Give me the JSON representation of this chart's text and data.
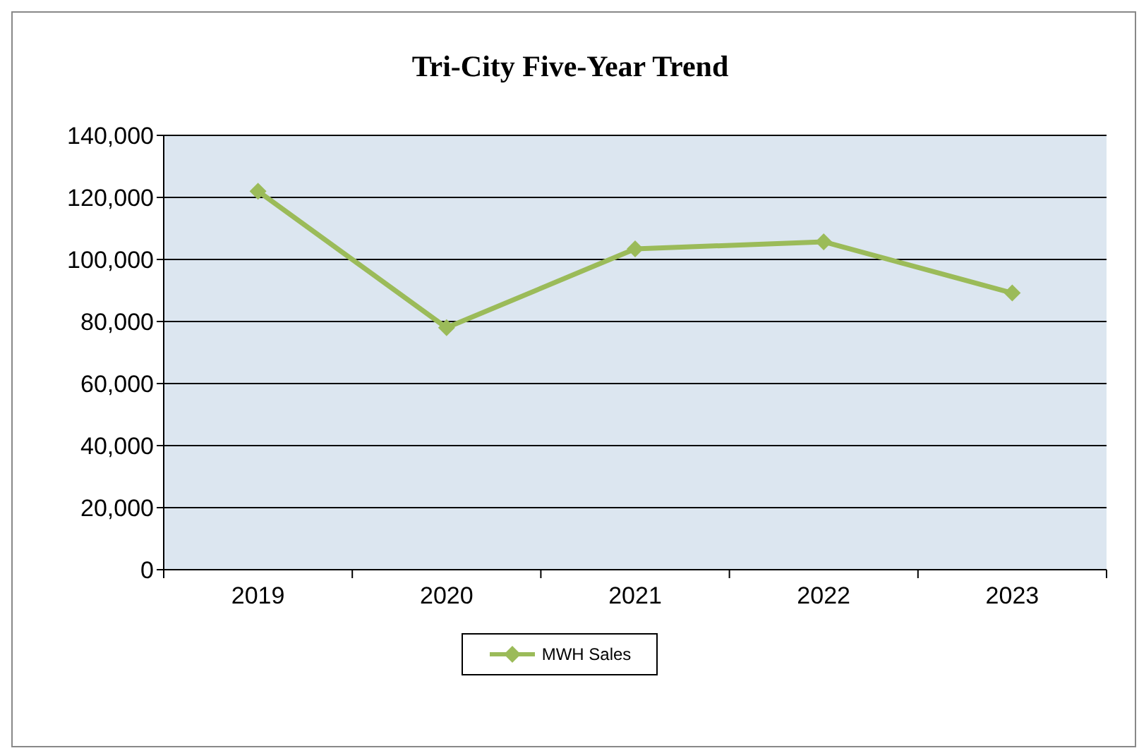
{
  "chart_data": {
    "type": "line",
    "title": "Tri-City Five-Year Trend",
    "categories": [
      "2019",
      "2020",
      "2021",
      "2022",
      "2023"
    ],
    "series": [
      {
        "name": "MWH Sales",
        "color": "#9bbb59",
        "values": [
          122000,
          78000,
          103400,
          105700,
          89200
        ]
      }
    ],
    "ylim": [
      0,
      140000
    ],
    "yticks": [
      0,
      {
        "value": 20000,
        "label": "20,000"
      },
      {
        "value": 40000,
        "label": "40,000"
      },
      {
        "value": 60000,
        "label": "60,000"
      },
      {
        "value": 80000,
        "label": "80,000"
      },
      {
        "value": 100000,
        "label": "100,000"
      },
      {
        "value": 120000,
        "label": "120,000"
      },
      {
        "value": 140000,
        "label": "140,000"
      }
    ],
    "grid": "y",
    "legend": "bottom",
    "marker": "diamond",
    "line_style": "solid"
  }
}
